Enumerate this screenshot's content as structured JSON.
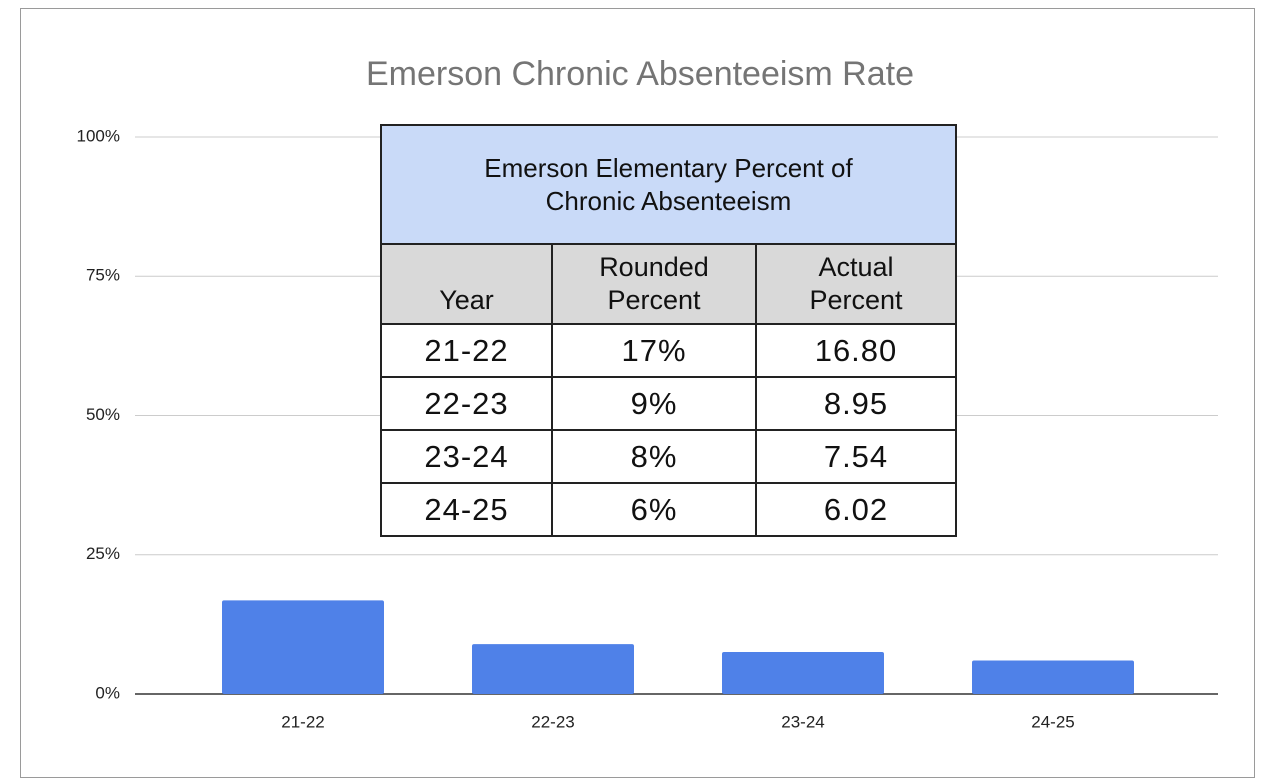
{
  "chart_data": {
    "type": "bar",
    "title": "Emerson Chronic Absenteeism Rate",
    "categories": [
      "21-22",
      "22-23",
      "23-24",
      "24-25"
    ],
    "values": [
      16.8,
      8.95,
      7.54,
      6.02
    ],
    "color": "#4f81e8",
    "ylim": [
      0,
      100
    ],
    "yticks": [
      {
        "value": 0,
        "label": "0%"
      },
      {
        "value": 25,
        "label": "25%"
      },
      {
        "value": 50,
        "label": "50%"
      },
      {
        "value": 75,
        "label": "75%"
      },
      {
        "value": 100,
        "label": "100%"
      }
    ],
    "grid": true
  },
  "table": {
    "title": "Emerson Elementary Percent of Chronic Absenteeism",
    "headers": [
      "Year",
      "Rounded Percent",
      "Actual Percent"
    ],
    "rows": [
      [
        "21-22",
        "17%",
        "16.80"
      ],
      [
        "22-23",
        "9%",
        "8.95"
      ],
      [
        "23-24",
        "8%",
        "7.54"
      ],
      [
        "24-25",
        "6%",
        "6.02"
      ]
    ]
  }
}
